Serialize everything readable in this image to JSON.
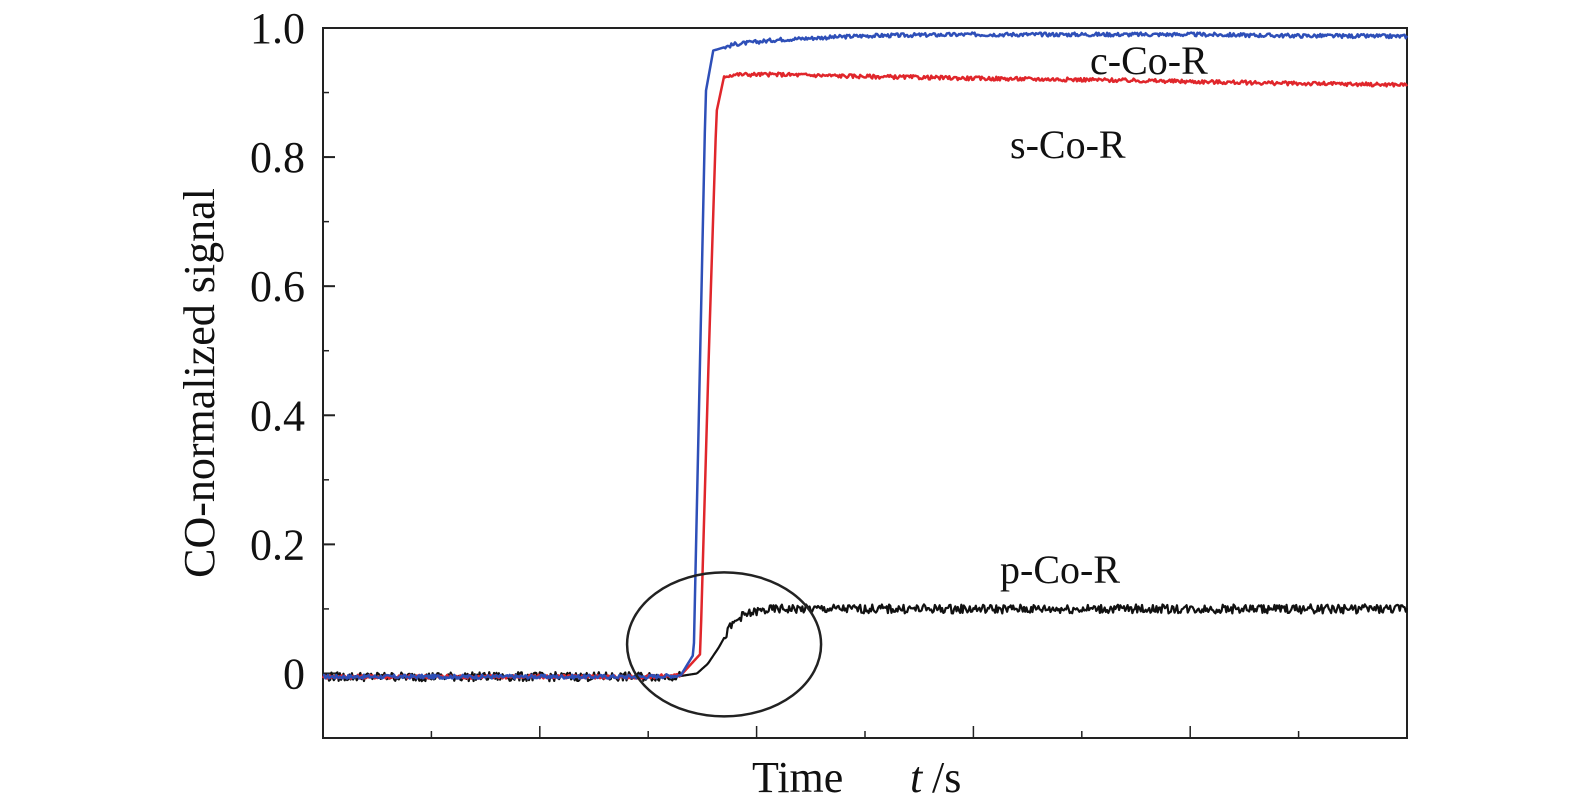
{
  "chart_data": {
    "type": "line",
    "title": "",
    "xlabel": "Time",
    "xlabel_var": "t",
    "xlabel_unit": "/s",
    "ylabel": "CO-normalized signal",
    "ylim": [
      -0.1,
      1.0
    ],
    "xlim": [
      0,
      100
    ],
    "grid": false,
    "x_ticks_labeled": false,
    "y_ticks": [
      {
        "value": 0,
        "label": "0"
      },
      {
        "value": 0.2,
        "label": "0.2"
      },
      {
        "value": 0.4,
        "label": "0.4"
      },
      {
        "value": 0.6,
        "label": "0.6"
      },
      {
        "value": 0.8,
        "label": "0.8"
      },
      {
        "value": 1.0,
        "label": "1.0"
      }
    ],
    "series": [
      {
        "name": "c-Co-R",
        "color": "#2e4fb8",
        "x": [
          0,
          30,
          33,
          34.2,
          34.8,
          35.3,
          36,
          38,
          42,
          50,
          60,
          70,
          80,
          90,
          100
        ],
        "y": [
          -0.005,
          -0.005,
          -0.003,
          0.03,
          0.5,
          0.9,
          0.965,
          0.975,
          0.982,
          0.988,
          0.99,
          0.99,
          0.99,
          0.988,
          0.987
        ]
      },
      {
        "name": "s-Co-R",
        "color": "#e0262b",
        "x": [
          0,
          30,
          33,
          34.8,
          35.6,
          36.3,
          37,
          38,
          42,
          50,
          60,
          70,
          80,
          90,
          100
        ],
        "y": [
          -0.005,
          -0.005,
          -0.003,
          0.03,
          0.5,
          0.87,
          0.925,
          0.928,
          0.928,
          0.925,
          0.922,
          0.92,
          0.917,
          0.914,
          0.912
        ]
      },
      {
        "name": "p-Co-R",
        "color": "#111111",
        "x": [
          0,
          30,
          33,
          34.5,
          35.5,
          36.5,
          37.5,
          38.5,
          40,
          42,
          45,
          50,
          60,
          70,
          80,
          90,
          100
        ],
        "y": [
          -0.005,
          -0.005,
          -0.004,
          0.0,
          0.015,
          0.04,
          0.07,
          0.088,
          0.096,
          0.1,
          0.1,
          0.1,
          0.1,
          0.1,
          0.1,
          0.1,
          0.1
        ]
      }
    ],
    "annotations": [
      {
        "type": "ellipse",
        "note": "circle highlighting onset region",
        "x": 37,
        "y": 0.045
      }
    ]
  }
}
